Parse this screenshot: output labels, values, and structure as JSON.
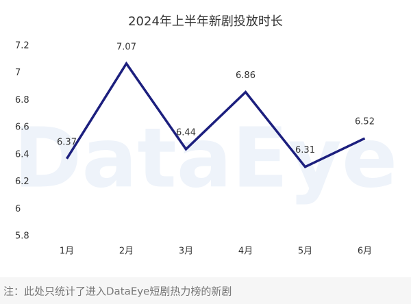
{
  "chart_data": {
    "type": "line",
    "title": "2024年上半年新剧投放时长",
    "categories": [
      "1月",
      "2月",
      "3月",
      "4月",
      "5月",
      "6月"
    ],
    "values": [
      6.37,
      7.07,
      6.44,
      6.86,
      6.31,
      6.52
    ],
    "color": "#1c1f7e",
    "ylim": [
      5.8,
      7.2
    ],
    "yticks": [
      5.8,
      6,
      6.2,
      6.4,
      6.6,
      6.8,
      7,
      7.2
    ],
    "grid": false,
    "watermark": "DataEye",
    "note": "注：此处只统计了进入DataEye短剧热力榜的新剧"
  }
}
